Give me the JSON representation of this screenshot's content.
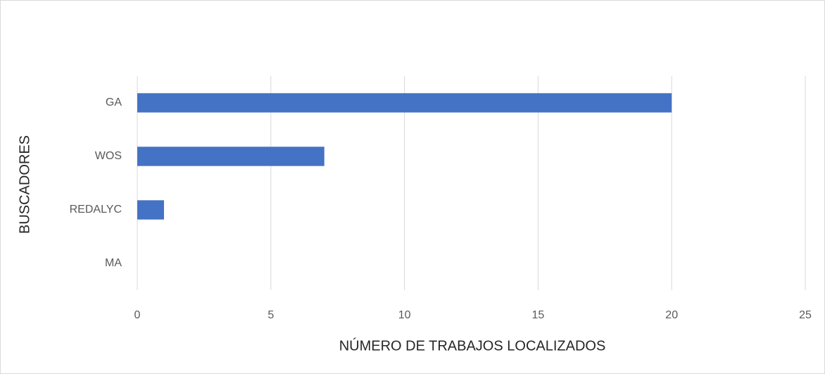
{
  "chart_data": {
    "type": "hbar",
    "x_label": "NÚMERO DE TRABAJOS LOCALIZADOS",
    "y_label": "BUSCADORES",
    "categories": [
      "GA",
      "WOS",
      "REDALYC",
      "MA"
    ],
    "values": [
      20,
      7,
      1,
      0
    ],
    "color": "#4472c4",
    "xlim": [
      0,
      25
    ],
    "xticks": [
      0,
      5,
      10,
      15,
      20,
      25
    ],
    "grid": true
  }
}
